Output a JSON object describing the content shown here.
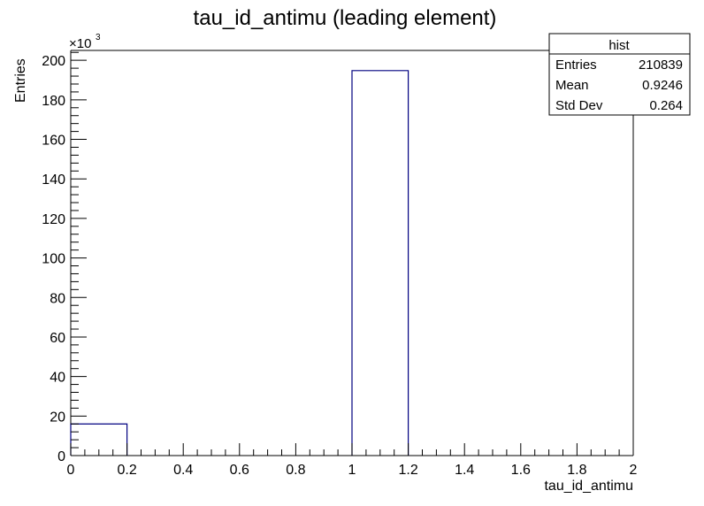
{
  "chart_data": {
    "type": "bar",
    "title": "tau_id_antimu (leading element)",
    "xlabel": "tau_id_antimu",
    "ylabel": "Entries",
    "y_multiplier_base": "×10",
    "y_multiplier_exp": "3",
    "xlim": [
      0,
      2
    ],
    "ylim": [
      0,
      205
    ],
    "x_ticks": [
      0,
      0.2,
      0.4,
      0.6,
      0.8,
      1,
      1.2,
      1.4,
      1.6,
      1.8,
      2
    ],
    "x_tick_labels": [
      "0",
      "0.2",
      "0.4",
      "0.6",
      "0.8",
      "1",
      "1.2",
      "1.4",
      "1.6",
      "1.8",
      "2"
    ],
    "y_ticks": [
      0,
      20,
      40,
      60,
      80,
      100,
      120,
      140,
      160,
      180,
      200
    ],
    "y_tick_labels": [
      "0",
      "20",
      "40",
      "60",
      "80",
      "100",
      "120",
      "140",
      "160",
      "180",
      "200"
    ],
    "bins": [
      {
        "low": 0.0,
        "high": 0.2,
        "value": 16.0
      },
      {
        "low": 0.2,
        "high": 0.4,
        "value": 0
      },
      {
        "low": 0.4,
        "high": 0.6,
        "value": 0
      },
      {
        "low": 0.6,
        "high": 0.8,
        "value": 0
      },
      {
        "low": 0.8,
        "high": 1.0,
        "value": 0
      },
      {
        "low": 1.0,
        "high": 1.2,
        "value": 194.8
      },
      {
        "low": 1.2,
        "high": 1.4,
        "value": 0
      },
      {
        "low": 1.4,
        "high": 1.6,
        "value": 0
      },
      {
        "low": 1.6,
        "high": 1.8,
        "value": 0
      },
      {
        "low": 1.8,
        "high": 2.0,
        "value": 0
      }
    ],
    "line_color": "#000080",
    "grid": false,
    "legend": "none",
    "stats_box": {
      "title": "hist",
      "rows": [
        {
          "label": "Entries",
          "value": "210839"
        },
        {
          "label": "Mean",
          "value": "0.9246"
        },
        {
          "label": "Std Dev",
          "value": "0.264"
        }
      ],
      "placement": "top-right"
    }
  }
}
